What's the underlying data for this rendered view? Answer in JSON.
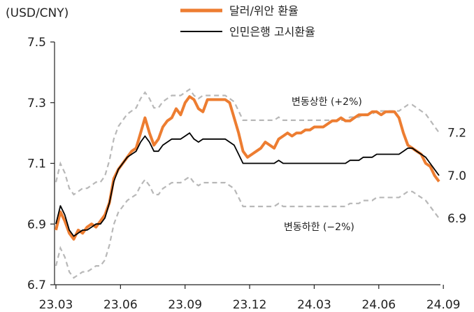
{
  "chart_data": {
    "type": "line",
    "title": "",
    "y_unit_label": "(USD/CNY)",
    "ylim": [
      6.7,
      7.5
    ],
    "y_ticks": [
      "6.7",
      "6.9",
      "7.1",
      "7.3",
      "7.5"
    ],
    "x_ticks": [
      "23.03",
      "23.06",
      "23.09",
      "23.12",
      "24.03",
      "24.06",
      "24.09"
    ],
    "right_ticks": [
      "7.2",
      "7.0",
      "6.9"
    ],
    "annotations": {
      "upper_band": "변동상한 (+2%)",
      "lower_band": "변동하한 (−2%)"
    },
    "legend_position": "top-center",
    "grid": false,
    "series": [
      {
        "name": "달러/위안 환율",
        "color": "#ED7D31",
        "points": [
          [
            "23.03",
            6.88
          ],
          [
            "23.03",
            6.94
          ],
          [
            "23.03",
            6.91
          ],
          [
            "23.03",
            6.87
          ],
          [
            "23.03",
            6.85
          ],
          [
            "23.04",
            6.88
          ],
          [
            "23.04",
            6.87
          ],
          [
            "23.04",
            6.89
          ],
          [
            "23.04",
            6.9
          ],
          [
            "23.04",
            6.89
          ],
          [
            "23.05",
            6.91
          ],
          [
            "23.05",
            6.93
          ],
          [
            "23.05",
            6.97
          ],
          [
            "23.05",
            7.05
          ],
          [
            "23.05",
            7.08
          ],
          [
            "23.06",
            7.1
          ],
          [
            "23.06",
            7.12
          ],
          [
            "23.06",
            7.14
          ],
          [
            "23.06",
            7.15
          ],
          [
            "23.06",
            7.2
          ],
          [
            "23.07",
            7.25
          ],
          [
            "23.07",
            7.2
          ],
          [
            "23.07",
            7.16
          ],
          [
            "23.07",
            7.18
          ],
          [
            "23.07",
            7.22
          ],
          [
            "23.08",
            7.24
          ],
          [
            "23.08",
            7.25
          ],
          [
            "23.08",
            7.28
          ],
          [
            "23.08",
            7.26
          ],
          [
            "23.08",
            7.3
          ],
          [
            "23.09",
            7.32
          ],
          [
            "23.09",
            7.31
          ],
          [
            "23.09",
            7.28
          ],
          [
            "23.09",
            7.27
          ],
          [
            "23.09",
            7.31
          ],
          [
            "23.10",
            7.31
          ],
          [
            "23.10",
            7.31
          ],
          [
            "23.10",
            7.31
          ],
          [
            "23.10",
            7.31
          ],
          [
            "23.10",
            7.3
          ],
          [
            "23.11",
            7.25
          ],
          [
            "23.11",
            7.2
          ],
          [
            "23.11",
            7.14
          ],
          [
            "23.11",
            7.12
          ],
          [
            "23.11",
            7.13
          ],
          [
            "23.12",
            7.14
          ],
          [
            "23.12",
            7.15
          ],
          [
            "23.12",
            7.17
          ],
          [
            "23.12",
            7.16
          ],
          [
            "23.12",
            7.15
          ],
          [
            "24.01",
            7.18
          ],
          [
            "24.01",
            7.19
          ],
          [
            "24.01",
            7.2
          ],
          [
            "24.01",
            7.19
          ],
          [
            "24.01",
            7.2
          ],
          [
            "24.02",
            7.2
          ],
          [
            "24.02",
            7.21
          ],
          [
            "24.02",
            7.21
          ],
          [
            "24.02",
            7.22
          ],
          [
            "24.02",
            7.22
          ],
          [
            "24.03",
            7.22
          ],
          [
            "24.03",
            7.23
          ],
          [
            "24.03",
            7.24
          ],
          [
            "24.03",
            7.24
          ],
          [
            "24.03",
            7.25
          ],
          [
            "24.04",
            7.24
          ],
          [
            "24.04",
            7.24
          ],
          [
            "24.04",
            7.25
          ],
          [
            "24.04",
            7.26
          ],
          [
            "24.04",
            7.26
          ],
          [
            "24.05",
            7.26
          ],
          [
            "24.05",
            7.27
          ],
          [
            "24.05",
            7.27
          ],
          [
            "24.05",
            7.26
          ],
          [
            "24.05",
            7.27
          ],
          [
            "24.06",
            7.27
          ],
          [
            "24.06",
            7.27
          ],
          [
            "24.06",
            7.25
          ],
          [
            "24.06",
            7.2
          ],
          [
            "24.06",
            7.16
          ],
          [
            "24.07",
            7.15
          ],
          [
            "24.07",
            7.14
          ],
          [
            "24.07",
            7.13
          ],
          [
            "24.07",
            7.1
          ],
          [
            "24.07",
            7.09
          ],
          [
            "24.08",
            7.06
          ],
          [
            "24.08",
            7.04
          ]
        ]
      },
      {
        "name": "인민은행 고시환율",
        "color": "#000000",
        "points": [
          [
            "23.03",
            6.9
          ],
          [
            "23.03",
            6.96
          ],
          [
            "23.03",
            6.93
          ],
          [
            "23.03",
            6.88
          ],
          [
            "23.03",
            6.86
          ],
          [
            "23.04",
            6.87
          ],
          [
            "23.04",
            6.88
          ],
          [
            "23.04",
            6.88
          ],
          [
            "23.04",
            6.89
          ],
          [
            "23.04",
            6.9
          ],
          [
            "23.05",
            6.9
          ],
          [
            "23.05",
            6.92
          ],
          [
            "23.05",
            6.97
          ],
          [
            "23.05",
            7.04
          ],
          [
            "23.05",
            7.08
          ],
          [
            "23.06",
            7.1
          ],
          [
            "23.06",
            7.12
          ],
          [
            "23.06",
            7.13
          ],
          [
            "23.06",
            7.14
          ],
          [
            "23.06",
            7.17
          ],
          [
            "23.07",
            7.19
          ],
          [
            "23.07",
            7.17
          ],
          [
            "23.07",
            7.14
          ],
          [
            "23.07",
            7.14
          ],
          [
            "23.07",
            7.16
          ],
          [
            "23.08",
            7.17
          ],
          [
            "23.08",
            7.18
          ],
          [
            "23.08",
            7.18
          ],
          [
            "23.08",
            7.18
          ],
          [
            "23.08",
            7.19
          ],
          [
            "23.09",
            7.2
          ],
          [
            "23.09",
            7.18
          ],
          [
            "23.09",
            7.17
          ],
          [
            "23.09",
            7.18
          ],
          [
            "23.09",
            7.18
          ],
          [
            "23.10",
            7.18
          ],
          [
            "23.10",
            7.18
          ],
          [
            "23.10",
            7.18
          ],
          [
            "23.10",
            7.18
          ],
          [
            "23.10",
            7.17
          ],
          [
            "23.11",
            7.16
          ],
          [
            "23.11",
            7.13
          ],
          [
            "23.11",
            7.1
          ],
          [
            "23.11",
            7.1
          ],
          [
            "23.11",
            7.1
          ],
          [
            "23.12",
            7.1
          ],
          [
            "23.12",
            7.1
          ],
          [
            "23.12",
            7.1
          ],
          [
            "23.12",
            7.1
          ],
          [
            "23.12",
            7.1
          ],
          [
            "24.01",
            7.11
          ],
          [
            "24.01",
            7.1
          ],
          [
            "24.01",
            7.1
          ],
          [
            "24.01",
            7.1
          ],
          [
            "24.01",
            7.1
          ],
          [
            "24.02",
            7.1
          ],
          [
            "24.02",
            7.1
          ],
          [
            "24.02",
            7.1
          ],
          [
            "24.02",
            7.1
          ],
          [
            "24.02",
            7.1
          ],
          [
            "24.03",
            7.1
          ],
          [
            "24.03",
            7.1
          ],
          [
            "24.03",
            7.1
          ],
          [
            "24.03",
            7.1
          ],
          [
            "24.03",
            7.1
          ],
          [
            "24.04",
            7.1
          ],
          [
            "24.04",
            7.11
          ],
          [
            "24.04",
            7.11
          ],
          [
            "24.04",
            7.11
          ],
          [
            "24.04",
            7.12
          ],
          [
            "24.05",
            7.12
          ],
          [
            "24.05",
            7.12
          ],
          [
            "24.05",
            7.13
          ],
          [
            "24.05",
            7.13
          ],
          [
            "24.05",
            7.13
          ],
          [
            "24.06",
            7.13
          ],
          [
            "24.06",
            7.13
          ],
          [
            "24.06",
            7.13
          ],
          [
            "24.06",
            7.14
          ],
          [
            "24.06",
            7.15
          ],
          [
            "24.07",
            7.15
          ],
          [
            "24.07",
            7.14
          ],
          [
            "24.07",
            7.13
          ],
          [
            "24.07",
            7.12
          ],
          [
            "24.07",
            7.1
          ],
          [
            "24.08",
            7.08
          ],
          [
            "24.08",
            7.06
          ]
        ]
      }
    ]
  }
}
